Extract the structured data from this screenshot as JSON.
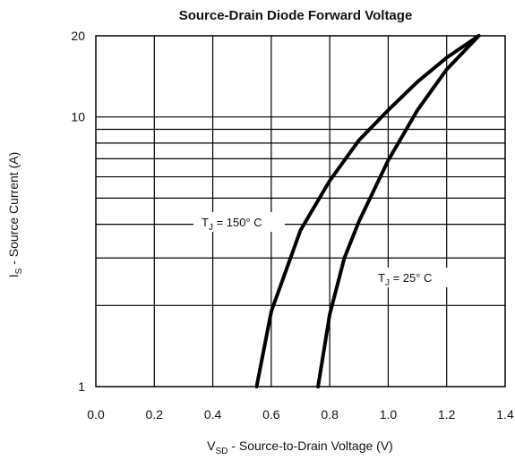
{
  "chart_data": {
    "type": "line",
    "title": "Source-Drain Diode Forward Voltage",
    "xlabel": {
      "main": "V",
      "sub": "SD",
      "rest": " - Source-to-Drain Voltage (V)"
    },
    "ylabel": {
      "main": "I",
      "sub": "S",
      "rest": " - Source Current (A)"
    },
    "xlim": [
      0,
      1.4
    ],
    "ylim": [
      1,
      20
    ],
    "yscale": "log",
    "grid": true,
    "x_ticks": [
      "0.0",
      "0.2",
      "0.4",
      "0.6",
      "0.8",
      "1.0",
      "1.2",
      "1.4"
    ],
    "y_ticks": [
      "1",
      "10",
      "20"
    ],
    "series": [
      {
        "label": {
          "main": "T",
          "sub": "J",
          "rest": " = 150° C"
        },
        "x": [
          0.55,
          0.6,
          0.7,
          0.8,
          0.9,
          1.0,
          1.1,
          1.2,
          1.31
        ],
        "y": [
          1.0,
          1.9,
          3.8,
          5.8,
          8.2,
          10.6,
          13.5,
          16.6,
          20.0
        ]
      },
      {
        "label": {
          "main": "T",
          "sub": "J",
          "rest": " = 25° C"
        },
        "x": [
          0.76,
          0.8,
          0.85,
          0.9,
          1.0,
          1.1,
          1.2,
          1.31
        ],
        "y": [
          1.0,
          1.85,
          3.0,
          4.1,
          6.9,
          10.6,
          15.0,
          20.0
        ]
      }
    ]
  }
}
